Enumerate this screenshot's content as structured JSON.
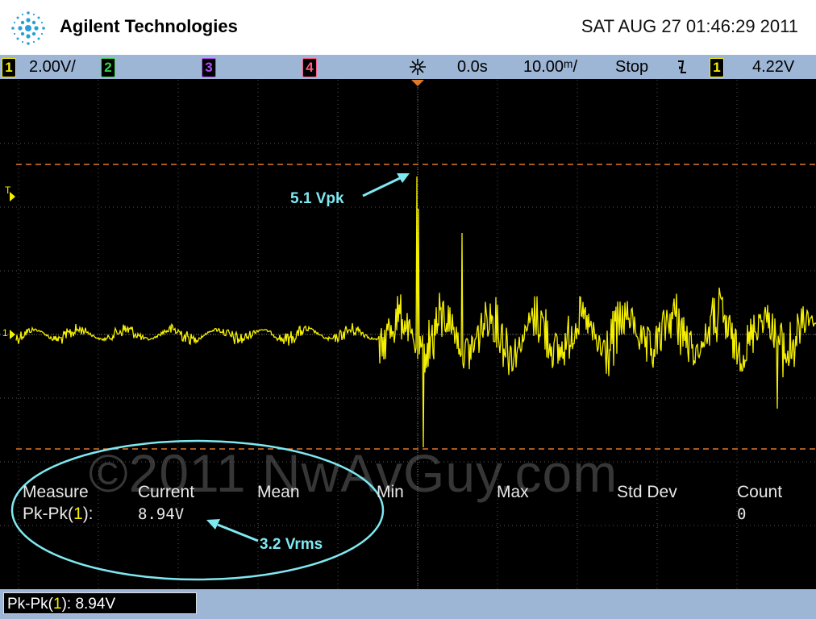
{
  "header": {
    "brand": "Agilent Technologies",
    "datetime": "SAT AUG 27 01:46:29 2011",
    "logo_icon": "agilent-spark-logo"
  },
  "statusbar": {
    "ch1_label": "1",
    "ch1_scale": "2.00V/",
    "ch2_label": "2",
    "ch3_label": "3",
    "ch4_label": "4",
    "delay": "0.0s",
    "timebase": "10.00ᵐ/",
    "run_state": "Stop",
    "trigger_slope_icon": "falling-edge-icon",
    "trigger_source": "1",
    "trigger_level": "4.22V",
    "colors": {
      "bar": "#9db6d6",
      "ch1": "#f5f000",
      "ch2": "#35d64a",
      "ch3": "#b24fff",
      "ch4": "#ff5c8a"
    }
  },
  "screen": {
    "trigger_marker": "T",
    "channel_marker": "1",
    "watermark": "©2011 NwAvGuy.com",
    "trace_color": "#f5f000",
    "cursor_color": "#e0782a",
    "annotation_color": "#7fe8f0"
  },
  "annotations": {
    "peak": "5.1 Vpk",
    "rms": "3.2 Vrms"
  },
  "measurements": {
    "headers": {
      "measure": "Measure",
      "current": "Current",
      "mean": "Mean",
      "min": "Min",
      "max": "Max",
      "std_dev": "Std Dev",
      "count": "Count"
    },
    "row": {
      "name_prefix": "Pk-Pk(",
      "channel": "1",
      "name_suffix": "):",
      "current": "8.94V",
      "count": "0"
    }
  },
  "bottombar": {
    "readout_prefix": "Pk-Pk(",
    "readout_channel": "1",
    "readout_suffix": "): 8.94V"
  }
}
